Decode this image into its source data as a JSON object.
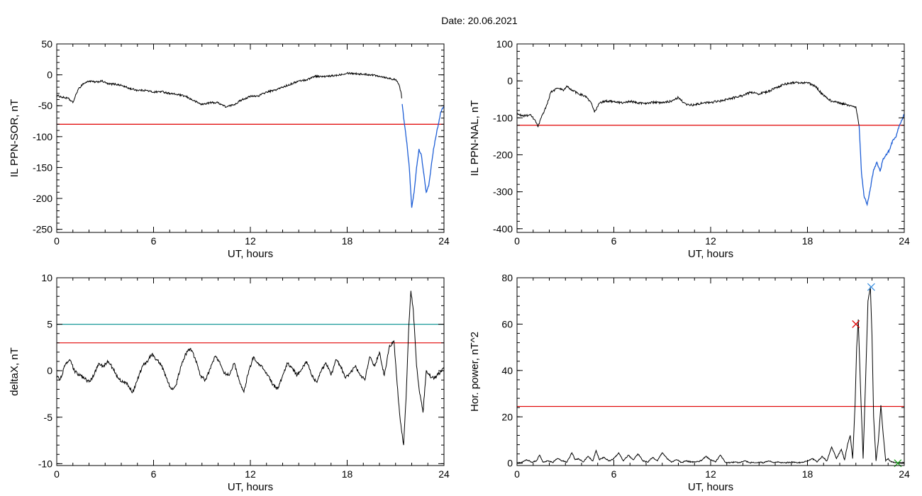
{
  "figure": {
    "title": "Date:  20.06.2021"
  },
  "colors": {
    "trace": "#000000",
    "trace_highlight": "#1f5fd6",
    "threshold_red": "#e00000",
    "threshold_teal": "#1a9a9a",
    "marker_red": "#e00000",
    "marker_blue": "#3a8fe0",
    "marker_green": "#22aa22"
  },
  "chart_data": [
    {
      "id": "ppn-sor",
      "type": "line",
      "xlabel": "UT, hours",
      "ylabel": "IL PPN-SOR, nT",
      "xlim": [
        0,
        24
      ],
      "ylim": [
        -255,
        50
      ],
      "xticks": [
        0,
        6,
        12,
        18,
        24
      ],
      "yticks": [
        50,
        0,
        -50,
        -100,
        -150,
        -200,
        -250
      ],
      "threshold_lines": [
        {
          "y": -80,
          "color": "red"
        }
      ],
      "highlight_from_x": 21.4,
      "series": [
        {
          "x": [
            0,
            0.3,
            0.7,
            1.0,
            1.3,
            1.6,
            2.0,
            2.4,
            2.8,
            3.2,
            3.6,
            4.0,
            4.5,
            5.0,
            5.5,
            6.0,
            6.5,
            7.0,
            7.5,
            8.0,
            8.5,
            9.0,
            9.5,
            10.0,
            10.5,
            11.0,
            11.5,
            12.0,
            12.5,
            13.0,
            13.5,
            14.0,
            14.5,
            15.0,
            15.5,
            16.0,
            16.5,
            17.0,
            17.5,
            18.0,
            18.5,
            19.0,
            19.5,
            20.0,
            20.5,
            21.0,
            21.2,
            21.35,
            21.5,
            21.7,
            21.85,
            22.0,
            22.15,
            22.3,
            22.45,
            22.6,
            22.75,
            22.9,
            23.05,
            23.2,
            23.35,
            23.5,
            23.65,
            23.8,
            24.0
          ],
          "y": [
            -33,
            -36,
            -38,
            -45,
            -25,
            -15,
            -10,
            -12,
            -10,
            -15,
            -15,
            -17,
            -22,
            -25,
            -25,
            -28,
            -27,
            -30,
            -32,
            -35,
            -42,
            -48,
            -45,
            -45,
            -52,
            -48,
            -40,
            -35,
            -34,
            -28,
            -25,
            -20,
            -15,
            -10,
            -8,
            -2,
            -3,
            -2,
            0,
            3,
            2,
            1,
            0,
            -2,
            -5,
            -8,
            -15,
            -30,
            -70,
            -110,
            -150,
            -215,
            -190,
            -150,
            -120,
            -130,
            -160,
            -190,
            -180,
            -150,
            -120,
            -100,
            -80,
            -60,
            -50
          ]
        }
      ]
    },
    {
      "id": "ppn-nal",
      "type": "line",
      "xlabel": "UT, hours",
      "ylabel": "IL PPN-NAL, nT",
      "xlim": [
        0,
        24
      ],
      "ylim": [
        -410,
        100
      ],
      "xticks": [
        0,
        6,
        12,
        18,
        24
      ],
      "yticks": [
        100,
        0,
        -100,
        -200,
        -300,
        -400
      ],
      "threshold_lines": [
        {
          "y": -120,
          "color": "red"
        }
      ],
      "highlight_from_x": 21.2,
      "series": [
        {
          "x": [
            0,
            0.4,
            0.8,
            1.1,
            1.3,
            1.5,
            1.8,
            2.1,
            2.5,
            2.9,
            3.1,
            3.4,
            3.8,
            4.2,
            4.6,
            4.8,
            5.1,
            5.5,
            6.0,
            6.5,
            7.0,
            7.5,
            8.0,
            8.5,
            9.0,
            9.5,
            10.0,
            10.5,
            11.0,
            11.5,
            12.0,
            12.5,
            13.0,
            13.5,
            14.0,
            14.5,
            15.0,
            15.5,
            16.0,
            16.5,
            17.0,
            17.5,
            18.0,
            18.5,
            19.0,
            19.5,
            20.0,
            20.5,
            21.0,
            21.2,
            21.35,
            21.5,
            21.7,
            21.9,
            22.1,
            22.3,
            22.5,
            22.7,
            22.9,
            23.1,
            23.3,
            23.5,
            23.7,
            24.0
          ],
          "y": [
            -90,
            -95,
            -92,
            -105,
            -125,
            -100,
            -70,
            -30,
            -20,
            -25,
            -15,
            -25,
            -35,
            -40,
            -60,
            -85,
            -60,
            -55,
            -55,
            -60,
            -55,
            -60,
            -60,
            -58,
            -60,
            -55,
            -45,
            -65,
            -65,
            -60,
            -58,
            -55,
            -50,
            -45,
            -40,
            -30,
            -35,
            -30,
            -20,
            -10,
            -5,
            -5,
            -5,
            -15,
            -40,
            -55,
            -60,
            -65,
            -70,
            -120,
            -250,
            -310,
            -335,
            -290,
            -240,
            -220,
            -245,
            -210,
            -200,
            -185,
            -160,
            -150,
            -120,
            -90
          ]
        }
      ]
    },
    {
      "id": "deltax",
      "type": "line",
      "xlabel": "UT, hours",
      "ylabel": "deltaX, nT",
      "xlim": [
        0,
        24
      ],
      "ylim": [
        -10.2,
        10
      ],
      "xticks": [
        0,
        6,
        12,
        18,
        24
      ],
      "yticks": [
        10,
        5,
        0,
        -5,
        -10
      ],
      "threshold_lines": [
        {
          "y": 5,
          "color": "teal"
        },
        {
          "y": 3,
          "color": "red"
        }
      ],
      "series": [
        {
          "x": [
            0,
            0.2,
            0.5,
            0.8,
            1.1,
            1.4,
            1.7,
            2.0,
            2.3,
            2.6,
            2.9,
            3.2,
            3.5,
            3.8,
            4.1,
            4.4,
            4.7,
            5.0,
            5.3,
            5.6,
            5.9,
            6.2,
            6.5,
            6.8,
            7.1,
            7.4,
            7.7,
            8.0,
            8.3,
            8.6,
            8.9,
            9.2,
            9.5,
            9.8,
            10.1,
            10.4,
            10.7,
            11.0,
            11.3,
            11.6,
            11.9,
            12.2,
            12.5,
            12.8,
            13.1,
            13.4,
            13.7,
            14.0,
            14.3,
            14.6,
            14.9,
            15.2,
            15.5,
            15.8,
            16.1,
            16.4,
            16.7,
            17.0,
            17.3,
            17.6,
            17.9,
            18.2,
            18.5,
            18.8,
            19.1,
            19.4,
            19.7,
            20.0,
            20.3,
            20.6,
            20.9,
            21.1,
            21.3,
            21.5,
            21.65,
            21.8,
            21.95,
            22.1,
            22.3,
            22.5,
            22.7,
            22.9,
            23.1,
            23.4,
            23.7,
            24.0
          ],
          "y": [
            -0.5,
            -1,
            0.5,
            1.2,
            0,
            -0.5,
            -0.8,
            -1.2,
            -0.5,
            0.8,
            0.5,
            1.0,
            0.2,
            -0.8,
            -1.2,
            -1.5,
            -2.3,
            -1.0,
            0.5,
            1.0,
            1.8,
            1.2,
            0.5,
            -0.8,
            -2.0,
            -1.5,
            0.5,
            1.8,
            2.4,
            1.2,
            -0.5,
            -1.0,
            0.2,
            1.5,
            1.0,
            -0.3,
            -0.5,
            0.8,
            -1.0,
            -2.3,
            0,
            1.5,
            0.8,
            0.2,
            -0.5,
            -1.5,
            -2.0,
            -0.5,
            0.8,
            0.3,
            -0.5,
            0.2,
            1.0,
            -0.5,
            -1.2,
            0,
            0.8,
            -0.5,
            1.2,
            0.5,
            -0.8,
            -0.2,
            0.5,
            -0.5,
            -1.0,
            1.5,
            0.5,
            2.0,
            -0.5,
            2.5,
            3.2,
            -1.5,
            -5.5,
            -8.0,
            -3.0,
            4.0,
            8.6,
            6.5,
            0.5,
            -2.5,
            -4.5,
            0,
            -0.5,
            -0.8,
            -0.3,
            0.2
          ]
        }
      ]
    },
    {
      "id": "hor-power",
      "type": "line",
      "xlabel": "UT, hours",
      "ylabel": "Hor. power, nT^2",
      "xlim": [
        0,
        24
      ],
      "ylim": [
        -1,
        80
      ],
      "xticks": [
        0,
        6,
        12,
        18,
        24
      ],
      "yticks": [
        80,
        60,
        40,
        20,
        0
      ],
      "threshold_lines": [
        {
          "y": 24.5,
          "color": "red"
        }
      ],
      "markers": [
        {
          "x": 21.0,
          "y": 60,
          "color": "red"
        },
        {
          "x": 21.95,
          "y": 76,
          "color": "blue"
        },
        {
          "x": 23.6,
          "y": 0,
          "color": "green"
        }
      ],
      "series": [
        {
          "x": [
            0,
            0.3,
            0.6,
            0.9,
            1.2,
            1.4,
            1.6,
            1.9,
            2.2,
            2.5,
            2.8,
            3.1,
            3.4,
            3.6,
            3.8,
            4.1,
            4.4,
            4.7,
            4.9,
            5.1,
            5.4,
            5.7,
            6.0,
            6.3,
            6.6,
            6.9,
            7.2,
            7.5,
            7.8,
            8.1,
            8.4,
            8.7,
            9.0,
            9.3,
            9.6,
            9.9,
            10.2,
            10.5,
            10.8,
            11.1,
            11.4,
            11.7,
            12.0,
            12.3,
            12.6,
            12.9,
            13.2,
            13.5,
            13.8,
            14.1,
            14.4,
            14.7,
            15.0,
            15.3,
            15.6,
            15.9,
            16.2,
            16.5,
            16.8,
            17.1,
            17.4,
            17.7,
            18.0,
            18.3,
            18.6,
            18.9,
            19.2,
            19.5,
            19.8,
            20.1,
            20.3,
            20.5,
            20.65,
            20.8,
            20.95,
            21.05,
            21.15,
            21.3,
            21.45,
            21.6,
            21.75,
            21.9,
            22.0,
            22.1,
            22.25,
            22.4,
            22.55,
            22.7,
            22.85,
            23.0,
            23.2,
            23.4,
            23.7,
            24.0
          ],
          "y": [
            0,
            0.5,
            1.5,
            0.5,
            1.0,
            3.5,
            0.5,
            1.0,
            0.3,
            2.0,
            1.0,
            0.5,
            4.5,
            1.5,
            2.0,
            0.5,
            3.0,
            1.0,
            5.5,
            1.5,
            2.5,
            1.0,
            2.0,
            4.5,
            1.0,
            3.5,
            1.5,
            4.0,
            1.0,
            0.5,
            2.5,
            1.0,
            4.5,
            2.0,
            0.5,
            1.5,
            0.3,
            1.0,
            0.5,
            0.5,
            1.0,
            3.0,
            1.5,
            0.5,
            3.5,
            0.5,
            0.2,
            0.5,
            0.2,
            1.0,
            0.3,
            0.2,
            0.5,
            0.2,
            1.0,
            0.2,
            0.5,
            0.2,
            0.3,
            0.5,
            0.2,
            0.3,
            1.0,
            2.0,
            0.5,
            3.0,
            1.0,
            7.0,
            2.0,
            6.0,
            1.5,
            8.5,
            12.0,
            2.0,
            25.0,
            50.0,
            62.0,
            30.0,
            2.0,
            35.0,
            70.0,
            76.0,
            55.0,
            20.0,
            1.0,
            10.0,
            25.0,
            12.0,
            1.0,
            2.0,
            0.5,
            0.3,
            0.2,
            0.2
          ]
        }
      ]
    }
  ]
}
